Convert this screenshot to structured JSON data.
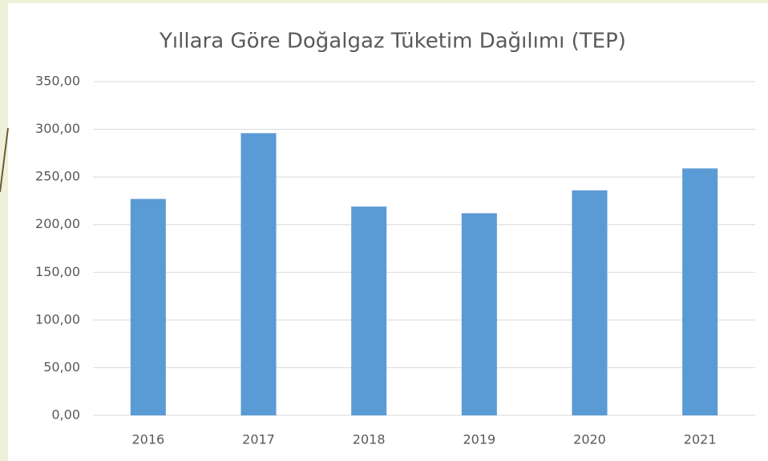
{
  "chart_data": {
    "type": "bar",
    "title": "Yıllara Göre Doğalgaz Tüketim Dağılımı (TEP)",
    "categories": [
      "2016",
      "2017",
      "2018",
      "2019",
      "2020",
      "2021"
    ],
    "values": [
      227,
      296,
      219,
      212,
      236,
      259
    ],
    "color": "#5b9bd5",
    "ylim": [
      0,
      350
    ],
    "yticks": [
      {
        "value": 0,
        "label": "0,00"
      },
      {
        "value": 50,
        "label": "50,00"
      },
      {
        "value": 100,
        "label": "100,00"
      },
      {
        "value": 150,
        "label": "150,00"
      },
      {
        "value": 200,
        "label": "200,00"
      },
      {
        "value": 250,
        "label": "250,00"
      },
      {
        "value": 300,
        "label": "300,00"
      },
      {
        "value": 350,
        "label": "350,00"
      }
    ],
    "grid": true
  }
}
